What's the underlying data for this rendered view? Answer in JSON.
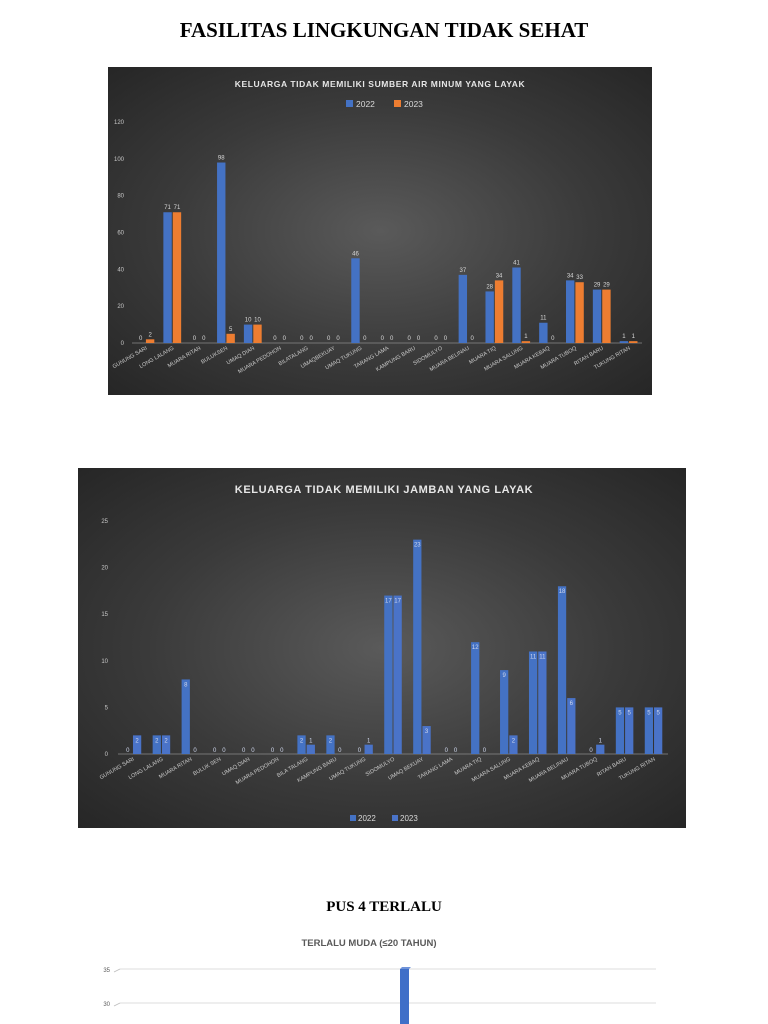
{
  "page": {
    "title": "FASILITAS LINGKUNGAN TIDAK SEHAT",
    "section_title": "PUS 4 TERLALU"
  },
  "colors": {
    "series_2022": "#4472c4",
    "series_2023": "#ed7d31",
    "series_2023_chart2": "#4a73c8"
  },
  "chart_data": [
    {
      "type": "bar",
      "title": "KELUARGA TIDAK MEMILIKI SUMBER AIR MINUM YANG LAYAK",
      "legend_position": "top",
      "ylim": [
        0,
        120
      ],
      "yticks": [
        0,
        20,
        40,
        60,
        80,
        100,
        120
      ],
      "categories": [
        "GUNUNG SARI",
        "LONG LALANG",
        "MUARA RITAN",
        "BULUKSEN",
        "UMAQ DIAN",
        "MUARA PEDOHON",
        "BILATALANG",
        "UMAQBEKUAY",
        "UMAQ TUKUNG",
        "TARANG LAMA",
        "KAMPUNG BARU",
        "SIDOMULYO",
        "MUARA BELINAU",
        "MUARA TIQ",
        "MUARA SALUNG",
        "MUARA KEBAQ",
        "MUARA TUBOQ",
        "RITAN BARU",
        "TUKUNG RITAN"
      ],
      "series": [
        {
          "name": "2022",
          "values": [
            0,
            71,
            0,
            98,
            10,
            0,
            0,
            0,
            46,
            0,
            0,
            0,
            37,
            28,
            41,
            11,
            34,
            29,
            1
          ]
        },
        {
          "name": "2023",
          "values": [
            2,
            71,
            0,
            5,
            10,
            0,
            0,
            0,
            0,
            0,
            0,
            0,
            0,
            34,
            1,
            0,
            33,
            29,
            1
          ]
        }
      ],
      "data_labels": [
        [
          "0",
          "71",
          "0",
          "98",
          "10",
          "0",
          "0",
          "0",
          "46",
          "0",
          "0",
          "0",
          "37",
          "28",
          "41",
          "11",
          "34",
          "29",
          "1"
        ],
        [
          "2",
          "71",
          "0",
          "5",
          "10",
          "0",
          "0",
          "0",
          "0",
          "0",
          "0",
          "0",
          "0",
          "34",
          "1",
          "0",
          "33",
          "29",
          "1"
        ]
      ]
    },
    {
      "type": "bar",
      "title": "KELUARGA TIDAK MEMILIKI JAMBAN YANG LAYAK",
      "legend_position": "bottom",
      "ylim": [
        0,
        25
      ],
      "yticks": [
        0,
        5,
        10,
        15,
        20,
        25
      ],
      "categories": [
        "GUNUNG SARI",
        "LONG LALANG",
        "MUARA RITAN",
        "BULUK SEN",
        "UMAQ DIAN",
        "MUARA PEDOHON",
        "BILA TALANG",
        "KAMPUNG BARU",
        "UMAQ TUKUNG",
        "SIDOMULYO",
        "UMAQ BEKUAY",
        "TARANG LAMA",
        "MUARA TIQ",
        "MUARA SALUNG",
        "MUARA KEBAQ",
        "MUARA BELINAU",
        "MUARA TUBOQ",
        "RITAN BARU",
        "TUKUNG RITAN"
      ],
      "series": [
        {
          "name": "2022",
          "values": [
            0,
            2,
            8,
            0,
            0,
            0,
            2,
            2,
            0,
            17,
            23,
            0,
            12,
            9,
            11,
            18,
            0,
            5,
            5
          ]
        },
        {
          "name": "2023",
          "values": [
            2,
            2,
            0,
            0,
            0,
            0,
            1,
            0,
            1,
            17,
            3,
            0,
            0,
            2,
            11,
            6,
            1,
            5,
            5
          ]
        }
      ],
      "data_labels": [
        [
          "0",
          "2",
          "8",
          "0",
          "0",
          "0",
          "2",
          "2",
          "0",
          "17",
          "23",
          "0",
          "12",
          "9",
          "11",
          "18",
          "0",
          "5",
          "5"
        ],
        [
          "2",
          "2",
          "0",
          "0",
          "0",
          "0",
          "1",
          "0",
          "1",
          "17",
          "3",
          "0",
          "0",
          "2",
          "11",
          "6",
          "1",
          "5",
          "5"
        ]
      ]
    },
    {
      "type": "bar",
      "title": "TERLALU MUDA (≤20 TAHUN)",
      "yticks_visible": [
        30,
        35
      ],
      "visible_bar": {
        "value": 35
      }
    }
  ]
}
